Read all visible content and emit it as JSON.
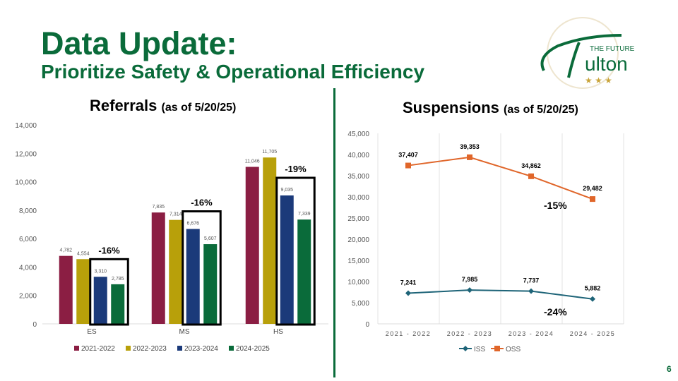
{
  "title": "Data Update:",
  "subtitle": "Prioritize Safety & Operational Efficiency",
  "page_number": "6",
  "logo": {
    "text": "THE FUTURE IS Fulton",
    "colors": {
      "green": "#0a6b3a",
      "gold": "#c9a43a"
    }
  },
  "chart_data": [
    {
      "type": "bar",
      "title": "Referrals",
      "title_note": "(as of 5/20/25)",
      "categories": [
        "ES",
        "MS",
        "HS"
      ],
      "ylim": [
        0,
        14000
      ],
      "yticks": [
        0,
        2000,
        4000,
        6000,
        8000,
        10000,
        12000,
        14000
      ],
      "yticks_labels": [
        "0",
        "2,000",
        "4,000",
        "6,000",
        "8,000",
        "10,000",
        "12,000",
        "14,000"
      ],
      "legend": "bottom",
      "series": [
        {
          "name": "2021-2022",
          "color": "#8b1e43",
          "values": [
            4782,
            7835,
            11046
          ],
          "labels": [
            "4,782",
            "7,835",
            "11,046"
          ]
        },
        {
          "name": "2022-2023",
          "color": "#b8a00a",
          "values": [
            4554,
            7314,
            11705
          ],
          "labels": [
            "4,554",
            "7,314",
            "11,705"
          ]
        },
        {
          "name": "2023-2024",
          "color": "#1b3a7a",
          "values": [
            3310,
            6676,
            9035
          ],
          "labels": [
            "3,310",
            "6,676",
            "9,035"
          ]
        },
        {
          "name": "2024-2025",
          "color": "#0a6b3a",
          "values": [
            2785,
            5607,
            7339
          ],
          "labels": [
            "2,785",
            "5,607",
            "7,339"
          ]
        }
      ],
      "annotations": [
        "-16%",
        "-16%",
        "-19%"
      ]
    },
    {
      "type": "line",
      "title": "Suspensions",
      "title_note": "(as of 5/20/25)",
      "categories": [
        "2021-2022",
        "2022-2023",
        "2023-2024",
        "2024-2025"
      ],
      "ylim": [
        0,
        45000
      ],
      "yticks": [
        0,
        5000,
        10000,
        15000,
        20000,
        25000,
        30000,
        35000,
        40000,
        45000
      ],
      "yticks_labels": [
        "0",
        "5,000",
        "10,000",
        "15,000",
        "20,000",
        "25,000",
        "30,000",
        "35,000",
        "40,000",
        "45,000"
      ],
      "grid": "vertical",
      "legend": "bottom",
      "series": [
        {
          "name": "ISS",
          "color": "#1e6478",
          "marker": "diamond",
          "values": [
            7241,
            7985,
            7737,
            5882
          ],
          "labels": [
            "7,241",
            "7,985",
            "7,737",
            "5,882"
          ]
        },
        {
          "name": "OSS",
          "color": "#e0662a",
          "marker": "square",
          "values": [
            37407,
            39353,
            34862,
            29482
          ],
          "labels": [
            "37,407",
            "39,353",
            "34,862",
            "29,482"
          ]
        }
      ],
      "annotations": {
        "OSS": "-15%",
        "ISS": "-24%"
      }
    }
  ]
}
